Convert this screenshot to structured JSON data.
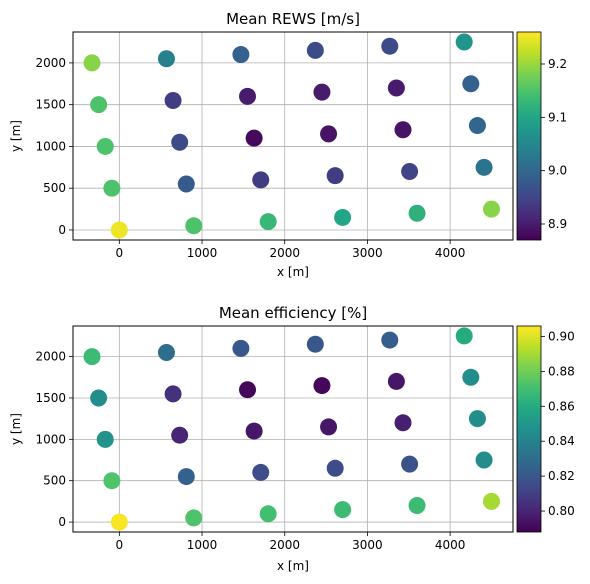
{
  "chart_data": [
    {
      "type": "scatter",
      "title": "Mean REWS [m/s]",
      "xlabel": "x [m]",
      "ylabel": "y [m]",
      "xlim": [
        -560,
        4760
      ],
      "ylim": [
        -120,
        2370
      ],
      "xticks": [
        0,
        1000,
        2000,
        3000,
        4000
      ],
      "yticks": [
        0,
        500,
        1000,
        1500,
        2000
      ],
      "grid": true,
      "colormap": "viridis",
      "clim": [
        8.87,
        9.26
      ],
      "cticks": [
        8.9,
        9.0,
        9.1,
        9.2
      ],
      "points": [
        {
          "x": 0,
          "y": 0,
          "v": 9.25
        },
        {
          "x": 900,
          "y": 50,
          "v": 9.15
        },
        {
          "x": 1800,
          "y": 100,
          "v": 9.13
        },
        {
          "x": 2700,
          "y": 150,
          "v": 9.1
        },
        {
          "x": 3600,
          "y": 200,
          "v": 9.12
        },
        {
          "x": 4500,
          "y": 250,
          "v": 9.19
        },
        {
          "x": -90,
          "y": 500,
          "v": 9.15
        },
        {
          "x": 810,
          "y": 550,
          "v": 8.98
        },
        {
          "x": 1710,
          "y": 600,
          "v": 8.94
        },
        {
          "x": 2610,
          "y": 650,
          "v": 8.94
        },
        {
          "x": 3510,
          "y": 700,
          "v": 8.95
        },
        {
          "x": 4410,
          "y": 750,
          "v": 9.02
        },
        {
          "x": -170,
          "y": 1000,
          "v": 9.15
        },
        {
          "x": 730,
          "y": 1050,
          "v": 8.96
        },
        {
          "x": 1630,
          "y": 1100,
          "v": 8.88
        },
        {
          "x": 2530,
          "y": 1150,
          "v": 8.89
        },
        {
          "x": 3430,
          "y": 1200,
          "v": 8.89
        },
        {
          "x": 4330,
          "y": 1250,
          "v": 9.0
        },
        {
          "x": -250,
          "y": 1500,
          "v": 9.15
        },
        {
          "x": 650,
          "y": 1550,
          "v": 8.94
        },
        {
          "x": 1550,
          "y": 1600,
          "v": 8.9
        },
        {
          "x": 2450,
          "y": 1650,
          "v": 8.9
        },
        {
          "x": 3350,
          "y": 1700,
          "v": 8.9
        },
        {
          "x": 4250,
          "y": 1750,
          "v": 8.99
        },
        {
          "x": -330,
          "y": 2000,
          "v": 9.19
        },
        {
          "x": 570,
          "y": 2050,
          "v": 9.04
        },
        {
          "x": 1470,
          "y": 2100,
          "v": 8.99
        },
        {
          "x": 2370,
          "y": 2150,
          "v": 8.96
        },
        {
          "x": 3270,
          "y": 2200,
          "v": 8.96
        },
        {
          "x": 4170,
          "y": 2250,
          "v": 9.07
        }
      ]
    },
    {
      "type": "scatter",
      "title": "Mean efficiency [%]",
      "xlabel": "x [m]",
      "ylabel": "y [m]",
      "xlim": [
        -560,
        4760
      ],
      "ylim": [
        -120,
        2370
      ],
      "xticks": [
        0,
        1000,
        2000,
        3000,
        4000
      ],
      "yticks": [
        0,
        500,
        1000,
        1500,
        2000
      ],
      "grid": true,
      "colormap": "viridis",
      "clim": [
        0.788,
        0.906
      ],
      "cticks": [
        0.8,
        0.82,
        0.84,
        0.86,
        0.88,
        0.9
      ],
      "points": [
        {
          "x": 0,
          "y": 0,
          "v": 0.905
        },
        {
          "x": 900,
          "y": 50,
          "v": 0.873
        },
        {
          "x": 1800,
          "y": 100,
          "v": 0.87
        },
        {
          "x": 2700,
          "y": 150,
          "v": 0.868
        },
        {
          "x": 3600,
          "y": 200,
          "v": 0.868
        },
        {
          "x": 4500,
          "y": 250,
          "v": 0.89
        },
        {
          "x": -90,
          "y": 500,
          "v": 0.873
        },
        {
          "x": 810,
          "y": 550,
          "v": 0.825
        },
        {
          "x": 1710,
          "y": 600,
          "v": 0.815
        },
        {
          "x": 2610,
          "y": 650,
          "v": 0.815
        },
        {
          "x": 3510,
          "y": 700,
          "v": 0.818
        },
        {
          "x": 4410,
          "y": 750,
          "v": 0.845
        },
        {
          "x": -170,
          "y": 1000,
          "v": 0.848
        },
        {
          "x": 730,
          "y": 1050,
          "v": 0.8
        },
        {
          "x": 1630,
          "y": 1100,
          "v": 0.795
        },
        {
          "x": 2530,
          "y": 1150,
          "v": 0.795
        },
        {
          "x": 3430,
          "y": 1200,
          "v": 0.798
        },
        {
          "x": 4330,
          "y": 1250,
          "v": 0.845
        },
        {
          "x": -250,
          "y": 1500,
          "v": 0.845
        },
        {
          "x": 650,
          "y": 1550,
          "v": 0.805
        },
        {
          "x": 1550,
          "y": 1600,
          "v": 0.79
        },
        {
          "x": 2450,
          "y": 1650,
          "v": 0.79
        },
        {
          "x": 3350,
          "y": 1700,
          "v": 0.795
        },
        {
          "x": 4250,
          "y": 1750,
          "v": 0.845
        },
        {
          "x": -330,
          "y": 2000,
          "v": 0.868
        },
        {
          "x": 570,
          "y": 2050,
          "v": 0.83
        },
        {
          "x": 1470,
          "y": 2100,
          "v": 0.82
        },
        {
          "x": 2370,
          "y": 2150,
          "v": 0.82
        },
        {
          "x": 3270,
          "y": 2200,
          "v": 0.823
        },
        {
          "x": 4170,
          "y": 2250,
          "v": 0.86
        }
      ]
    }
  ]
}
